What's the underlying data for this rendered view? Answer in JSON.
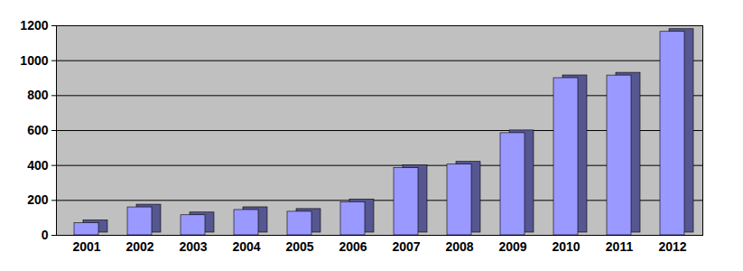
{
  "chart_data": {
    "type": "bar",
    "categories": [
      "2001",
      "2002",
      "2003",
      "2004",
      "2005",
      "2006",
      "2007",
      "2008",
      "2009",
      "2010",
      "2011",
      "2012"
    ],
    "values": [
      70,
      160,
      115,
      145,
      135,
      190,
      385,
      405,
      585,
      900,
      915,
      1165
    ],
    "color": "#9999ff",
    "ylim": [
      0,
      1200
    ],
    "yticks": [
      0,
      200,
      400,
      600,
      800,
      1000,
      1200
    ],
    "grid": true
  }
}
